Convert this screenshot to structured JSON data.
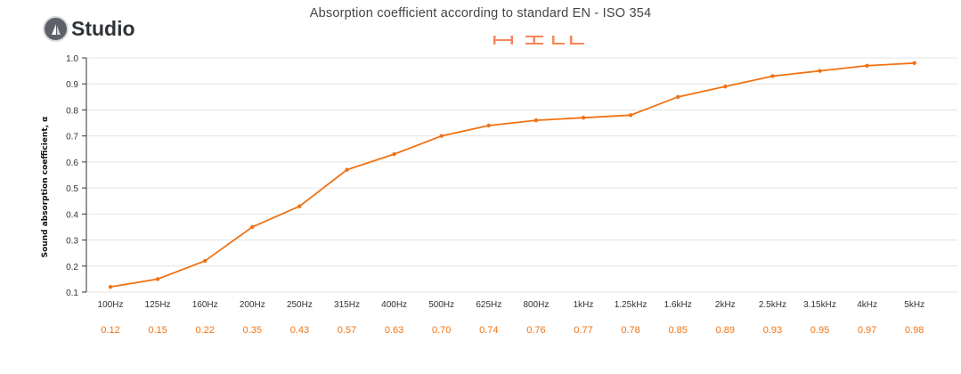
{
  "brand": {
    "name": "Studio",
    "icon": "studio-logo-icon",
    "mark_color": "#f4885a"
  },
  "chart_data": {
    "type": "line",
    "title": "Absorption coefficient according to standard EN - ISO 354",
    "xlabel": "",
    "ylabel": "Sound absorption coefficient, α",
    "categories": [
      "100Hz",
      "125Hz",
      "160Hz",
      "200Hz",
      "250Hz",
      "315Hz",
      "400Hz",
      "500Hz",
      "625Hz",
      "800Hz",
      "1kHz",
      "1.25kHz",
      "1.6kHz",
      "2kHz",
      "2.5kHz",
      "3.15kHz",
      "4kHz",
      "5kHz"
    ],
    "series": [
      {
        "values": [
          0.12,
          0.15,
          0.22,
          0.35,
          0.43,
          0.57,
          0.63,
          0.7,
          0.74,
          0.76,
          0.77,
          0.78,
          0.85,
          0.89,
          0.93,
          0.95,
          0.97,
          0.98
        ]
      }
    ],
    "value_labels": [
      "0.12",
      "0.15",
      "0.22",
      "0.35",
      "0.43",
      "0.57",
      "0.63",
      "0.70",
      "0.74",
      "0.76",
      "0.77",
      "0.78",
      "0.85",
      "0.89",
      "0.93",
      "0.95",
      "0.97",
      "0.98"
    ],
    "yticks": [
      "0.1",
      "0.2",
      "0.3",
      "0.4",
      "0.5",
      "0.6",
      "0.7",
      "0.8",
      "0.9",
      "1.0"
    ],
    "ylim": [
      0.1,
      1.0
    ],
    "grid": true,
    "line_color": "#f07213",
    "label_color": "#f07213"
  }
}
